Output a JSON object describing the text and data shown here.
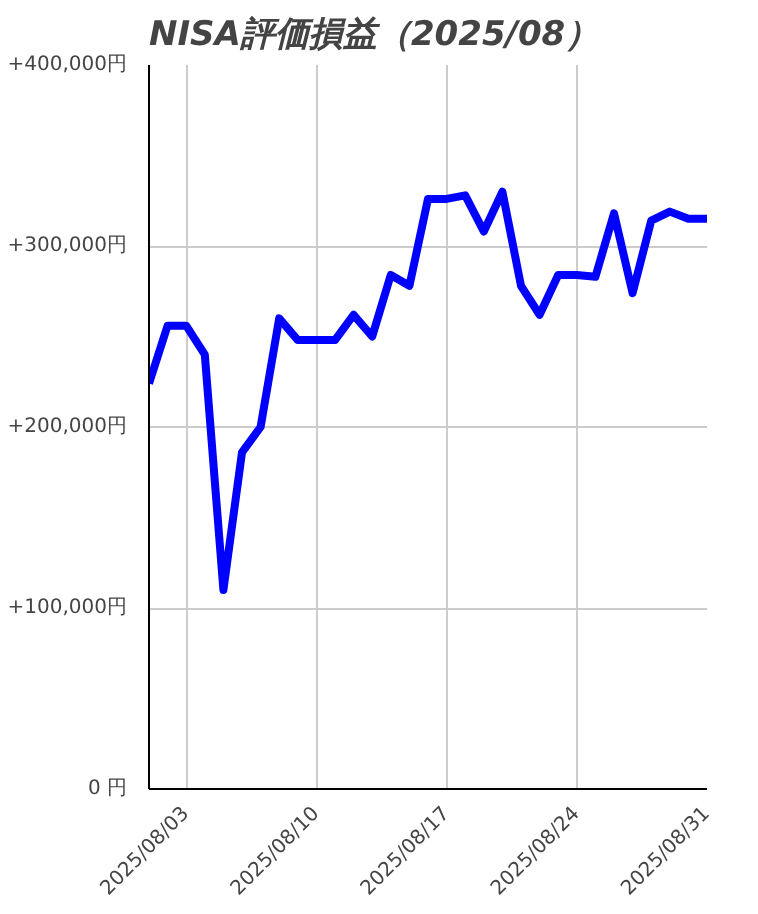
{
  "chart_data": {
    "type": "line",
    "title": "NISA評価損益（2025/08）",
    "x": [
      "2025-08-01",
      "2025-08-02",
      "2025-08-03",
      "2025-08-04",
      "2025-08-05",
      "2025-08-06",
      "2025-08-07",
      "2025-08-08",
      "2025-08-09",
      "2025-08-10",
      "2025-08-11",
      "2025-08-12",
      "2025-08-13",
      "2025-08-14",
      "2025-08-15",
      "2025-08-16",
      "2025-08-17",
      "2025-08-18",
      "2025-08-19",
      "2025-08-20",
      "2025-08-21",
      "2025-08-22",
      "2025-08-23",
      "2025-08-24",
      "2025-08-25",
      "2025-08-26",
      "2025-08-27",
      "2025-08-28",
      "2025-08-29",
      "2025-08-30",
      "2025-08-31"
    ],
    "series": [
      {
        "color": "#0000ff",
        "values": [
          224000,
          256000,
          256000,
          240000,
          110000,
          186000,
          200000,
          260000,
          248000,
          248000,
          248000,
          262000,
          250000,
          284000,
          278000,
          326000,
          326000,
          328000,
          308000,
          330000,
          278000,
          262000,
          284000,
          284000,
          283000,
          318000,
          274000,
          314000,
          319000,
          315000,
          315000
        ]
      }
    ],
    "xlim": [
      "2025-08-01",
      "2025-08-31"
    ],
    "xticks": [
      {
        "value": "2025-08-03",
        "label": "2025/08/03"
      },
      {
        "value": "2025-08-10",
        "label": "2025/08/10"
      },
      {
        "value": "2025-08-17",
        "label": "2025/08/17"
      },
      {
        "value": "2025-08-24",
        "label": "2025/08/24"
      },
      {
        "value": "2025-08-31",
        "label": "2025/08/31"
      }
    ],
    "ylim": [
      0,
      400000
    ],
    "yticks": [
      {
        "value": 0,
        "label": "0 円"
      },
      {
        "value": 100000,
        "label": "+100,000円"
      },
      {
        "value": 200000,
        "label": "+200,000円"
      },
      {
        "value": 300000,
        "label": "+300,000円"
      },
      {
        "value": 400000,
        "label": "+400,000円"
      }
    ],
    "grid": true,
    "marker": "none",
    "line_style": "solid"
  }
}
